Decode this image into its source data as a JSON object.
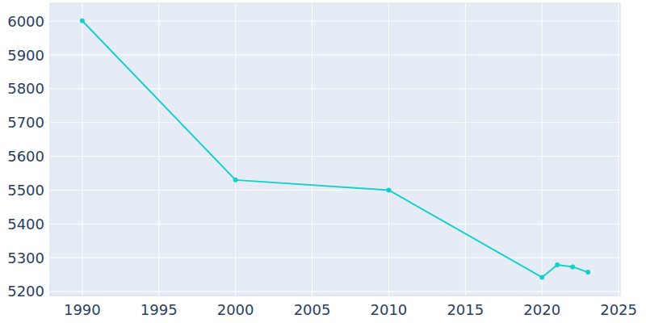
{
  "chart_data": {
    "type": "line",
    "x": [
      1990,
      2000,
      2010,
      2020,
      2021,
      2022,
      2023
    ],
    "values": [
      6001,
      5530,
      5500,
      5242,
      5279,
      5273,
      5257
    ],
    "color": "#17cfcb",
    "marker": "circle",
    "xlim": [
      1987.9,
      2025.1
    ],
    "xticks": [
      1990,
      1995,
      2000,
      2005,
      2010,
      2015,
      2020,
      2025
    ],
    "ylim": [
      5188,
      6053
    ],
    "yticks": [
      5200,
      5300,
      5400,
      5500,
      5600,
      5700,
      5800,
      5900,
      6000
    ],
    "grid": true
  }
}
